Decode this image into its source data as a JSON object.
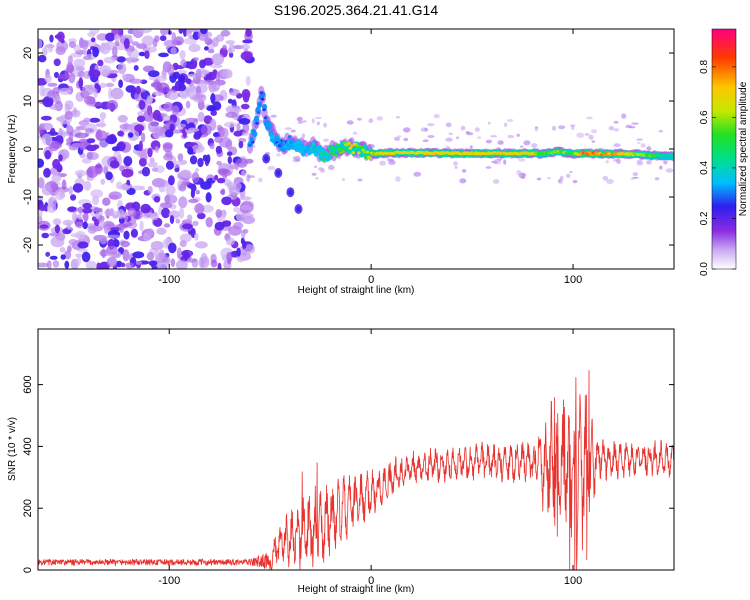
{
  "title": "S196.2025.364.21.41.G14",
  "chart_data": [
    {
      "type": "heatmap",
      "title": "S196.2025.364.21.41.G14",
      "xlabel": "Height of straight line (km)",
      "ylabel": "Frequency (Hz)",
      "xlim": [
        -165,
        150
      ],
      "ylim": [
        -25,
        25
      ],
      "xticks": [
        -100,
        0,
        100
      ],
      "yticks": [
        -20,
        -10,
        0,
        10,
        20
      ],
      "colorbar": {
        "label": "Normalized spectral amplitude",
        "range": [
          0,
          0.95
        ],
        "ticks": [
          0.0,
          0.2,
          0.4,
          0.6,
          0.8
        ],
        "tick_labels": [
          "0.0",
          "0.2",
          "0.4",
          "0.6",
          "0.8"
        ]
      },
      "noise_region_x": [
        -165,
        -60
      ],
      "ridge": [
        {
          "x": -60,
          "f": 0.0,
          "a": 0.35
        },
        {
          "x": -57,
          "f": 5.0,
          "a": 0.3
        },
        {
          "x": -54,
          "f": 12.0,
          "a": 0.25
        },
        {
          "x": -52,
          "f": 5.5,
          "a": 0.3
        },
        {
          "x": -48,
          "f": 2.5,
          "a": 0.35
        },
        {
          "x": -44,
          "f": 1.0,
          "a": 0.3
        },
        {
          "x": -40,
          "f": 1.5,
          "a": 0.35
        },
        {
          "x": -36,
          "f": 0.5,
          "a": 0.4
        },
        {
          "x": -32,
          "f": -0.5,
          "a": 0.35
        },
        {
          "x": -28,
          "f": 0.5,
          "a": 0.4
        },
        {
          "x": -24,
          "f": -1.5,
          "a": 0.45
        },
        {
          "x": -20,
          "f": -0.5,
          "a": 0.5
        },
        {
          "x": -15,
          "f": 0.0,
          "a": 0.55
        },
        {
          "x": -10,
          "f": 0.5,
          "a": 0.75
        },
        {
          "x": -5,
          "f": -0.5,
          "a": 0.6
        },
        {
          "x": 0,
          "f": -1.0,
          "a": 0.65
        },
        {
          "x": 10,
          "f": -0.8,
          "a": 0.7
        },
        {
          "x": 20,
          "f": -0.8,
          "a": 0.7
        },
        {
          "x": 40,
          "f": -0.9,
          "a": 0.72
        },
        {
          "x": 60,
          "f": -0.9,
          "a": 0.72
        },
        {
          "x": 80,
          "f": -0.9,
          "a": 0.7
        },
        {
          "x": 85,
          "f": -1.0,
          "a": 0.55
        },
        {
          "x": 92,
          "f": -0.5,
          "a": 0.6
        },
        {
          "x": 100,
          "f": -1.0,
          "a": 0.55
        },
        {
          "x": 105,
          "f": -0.9,
          "a": 0.85
        },
        {
          "x": 115,
          "f": -1.0,
          "a": 0.8
        },
        {
          "x": 125,
          "f": -1.0,
          "a": 0.75
        },
        {
          "x": 135,
          "f": -1.2,
          "a": 0.6
        },
        {
          "x": 145,
          "f": -1.5,
          "a": 0.45
        }
      ],
      "branch": [
        {
          "x": -52,
          "f": -2.0
        },
        {
          "x": -46,
          "f": -5.0
        },
        {
          "x": -40,
          "f": -9.0
        },
        {
          "x": -36,
          "f": -12.5
        }
      ]
    },
    {
      "type": "line",
      "xlabel": "Height of straight line (km)",
      "ylabel": "SNR (10 * v/v)",
      "xlim": [
        -165,
        150
      ],
      "ylim": [
        0,
        780
      ],
      "xticks": [
        -100,
        0,
        100
      ],
      "yticks": [
        0,
        200,
        400,
        600
      ],
      "series_color": "#e8322e",
      "envelope": [
        {
          "x": -165,
          "base": 25,
          "amp": 10
        },
        {
          "x": -60,
          "base": 25,
          "amp": 10
        },
        {
          "x": -50,
          "base": 30,
          "amp": 30
        },
        {
          "x": -45,
          "base": 80,
          "amp": 90
        },
        {
          "x": -35,
          "base": 120,
          "amp": 130
        },
        {
          "x": -25,
          "base": 140,
          "amp": 150
        },
        {
          "x": -15,
          "base": 190,
          "amp": 110
        },
        {
          "x": 0,
          "base": 250,
          "amp": 80
        },
        {
          "x": 20,
          "base": 330,
          "amp": 60
        },
        {
          "x": 40,
          "base": 345,
          "amp": 60
        },
        {
          "x": 60,
          "base": 350,
          "amp": 65
        },
        {
          "x": 80,
          "base": 350,
          "amp": 70
        },
        {
          "x": 88,
          "base": 340,
          "amp": 200
        },
        {
          "x": 94,
          "base": 330,
          "amp": 260
        },
        {
          "x": 100,
          "base": 320,
          "amp": 220
        },
        {
          "x": 106,
          "base": 320,
          "amp": 300
        },
        {
          "x": 112,
          "base": 360,
          "amp": 70
        },
        {
          "x": 130,
          "base": 360,
          "amp": 60
        },
        {
          "x": 150,
          "base": 360,
          "amp": 60
        }
      ]
    }
  ]
}
